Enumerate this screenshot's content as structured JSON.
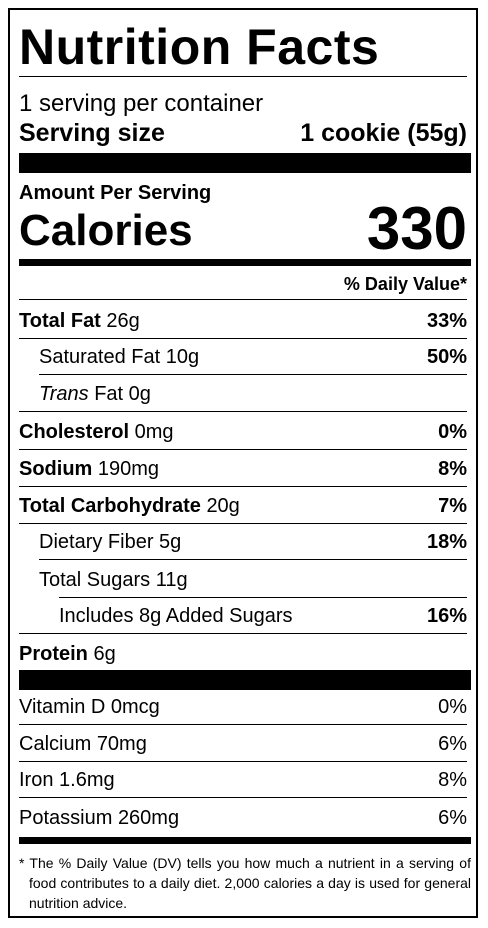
{
  "title": "Nutrition Facts",
  "servings": "1 serving per container",
  "serving_size": {
    "label": "Serving size",
    "value": "1 cookie (55g)"
  },
  "amount_per_serving": "Amount Per Serving",
  "calories": {
    "label": "Calories",
    "value": "330"
  },
  "daily_value_header": "% Daily Value*",
  "nutrients": [
    {
      "name": "Total Fat",
      "amount": "26g",
      "dv": "33%"
    },
    {
      "name": "Saturated Fat",
      "amount": "10g",
      "dv": "50%"
    },
    {
      "name_italic": "Trans",
      "name": "Fat",
      "amount": "0g"
    },
    {
      "name": "Cholesterol",
      "amount": "0mg",
      "dv": "0%"
    },
    {
      "name": "Sodium",
      "amount": "190mg",
      "dv": "8%"
    },
    {
      "name": "Total Carbohydrate",
      "amount": "20g",
      "dv": "7%"
    },
    {
      "name": "Dietary Fiber",
      "amount": "5g",
      "dv": "18%"
    },
    {
      "name": "Total Sugars",
      "amount": "11g"
    },
    {
      "name": "Includes 8g Added Sugars",
      "dv": "16%"
    },
    {
      "name": "Protein",
      "amount": "6g"
    }
  ],
  "vitamins": [
    {
      "name": "Vitamin D",
      "amount": "0mcg",
      "dv": "0%"
    },
    {
      "name": "Calcium",
      "amount": "70mg",
      "dv": "6%"
    },
    {
      "name": "Iron",
      "amount": "1.6mg",
      "dv": "8%"
    },
    {
      "name": "Potassium",
      "amount": "260mg",
      "dv": "6%"
    }
  ],
  "footnote": "* The % Daily Value (DV) tells you how much a nutrient in a serving of food contributes to a daily diet. 2,000 calories a day is used for general nutrition advice."
}
